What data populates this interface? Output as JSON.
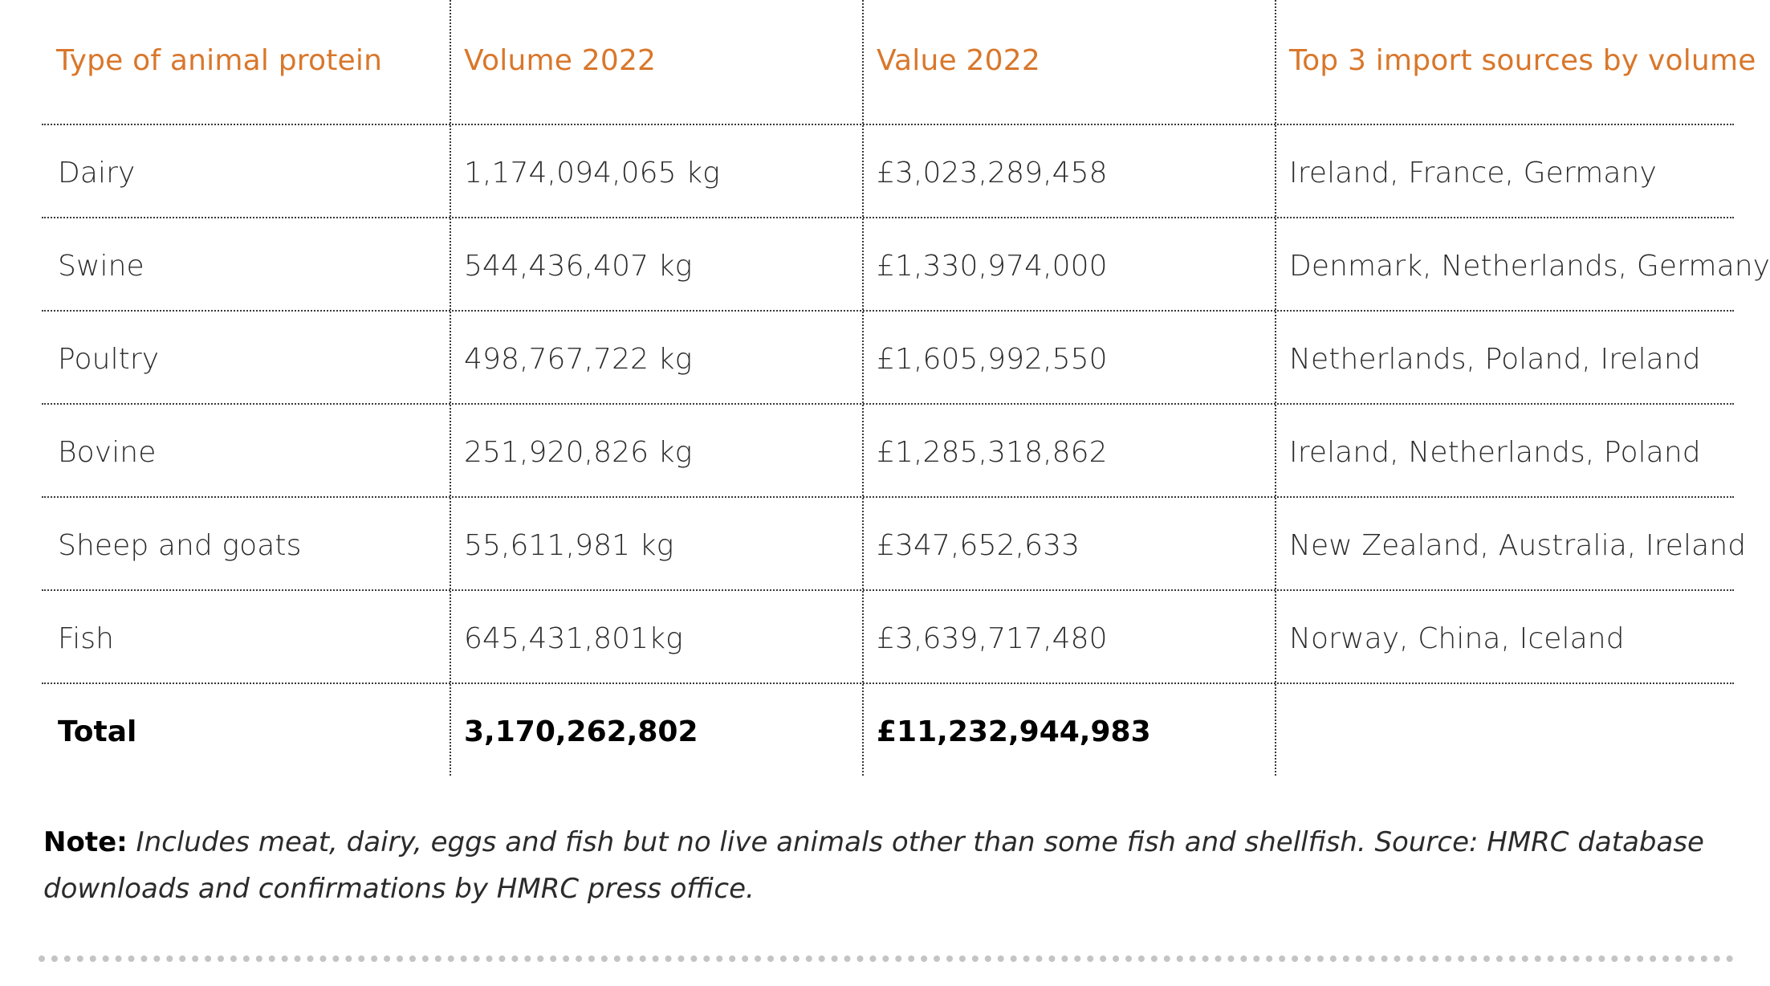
{
  "table": {
    "headers": [
      "Type of animal protein",
      "Volume 2022",
      "Value 2022",
      "Top 3 import sources by volume"
    ],
    "rows": [
      [
        "Dairy",
        "1,174,094,065 kg",
        "£3,023,289,458",
        "Ireland, France, Germany"
      ],
      [
        "Swine",
        "544,436,407 kg",
        "£1,330,974,000",
        "Denmark, Netherlands, Germany"
      ],
      [
        "Poultry",
        "498,767,722 kg",
        "£1,605,992,550",
        "Netherlands, Poland, Ireland"
      ],
      [
        "Bovine",
        "251,920,826 kg",
        "£1,285,318,862",
        "Ireland, Netherlands, Poland"
      ],
      [
        "Sheep and goats",
        "55,611,981 kg",
        "£347,652,633",
        "New Zealand, Australia, Ireland"
      ],
      [
        "Fish",
        "645,431,801kg",
        "£3,639,717,480",
        "Norway, China, Iceland"
      ]
    ],
    "total": [
      "Total",
      "3,170,262,802",
      "£11,232,944,983",
      ""
    ]
  },
  "note": {
    "label": "Note:",
    "text": "Includes meat, dairy, eggs and fish but no live animals other than some fish and shellfish. Source: HMRC database downloads and confirmations by HMRC press office."
  },
  "colors": {
    "header_text": "#d9772b",
    "body_text": "#2b2b2b",
    "rules": "#3a3a3a",
    "bottom_divider": "#c4c4c4"
  }
}
